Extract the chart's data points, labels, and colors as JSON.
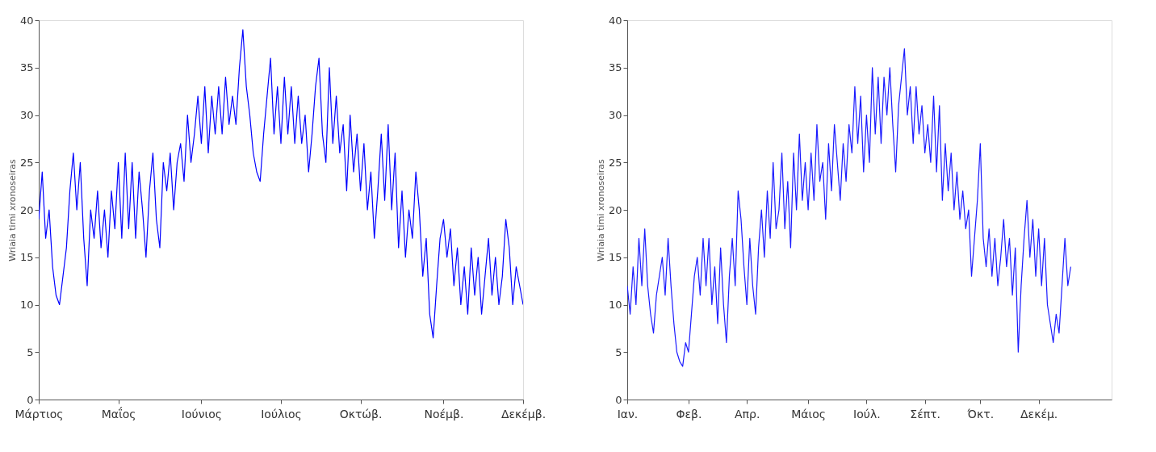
{
  "chart_data": [
    {
      "type": "line",
      "ylabel": "Wriaia timi xronoseiras",
      "grid": false,
      "categories": [
        "Μάρτιος",
        null,
        null,
        null,
        null,
        null,
        null,
        null,
        null,
        null,
        null,
        null,
        null,
        null,
        null,
        null,
        null,
        null,
        null,
        null,
        null,
        null,
        null,
        "Μαΐος",
        null,
        null,
        null,
        null,
        null,
        null,
        null,
        null,
        null,
        null,
        null,
        null,
        null,
        null,
        null,
        null,
        null,
        null,
        null,
        null,
        null,
        null,
        null,
        "Ιούνιος",
        null,
        null,
        null,
        null,
        null,
        null,
        null,
        null,
        null,
        null,
        null,
        null,
        null,
        null,
        null,
        null,
        null,
        null,
        null,
        null,
        null,
        null,
        "Ιούλιος",
        null,
        null,
        null,
        null,
        null,
        null,
        null,
        null,
        null,
        null,
        null,
        null,
        null,
        null,
        null,
        null,
        null,
        null,
        null,
        null,
        null,
        null,
        "Οκτώβ.",
        null,
        null,
        null,
        null,
        null,
        null,
        null,
        null,
        null,
        null,
        null,
        null,
        null,
        null,
        null,
        null,
        null,
        null,
        null,
        null,
        null,
        null,
        null,
        "Νοέμβ.",
        null,
        null,
        null,
        null,
        null,
        null,
        null,
        null,
        null,
        null,
        null,
        null,
        null,
        null,
        null,
        null,
        null,
        null,
        null,
        null,
        null,
        null,
        "Δεκέμβ."
      ],
      "ylim": [
        0,
        40
      ],
      "yticks": [
        0,
        5,
        10,
        15,
        20,
        25,
        30,
        35,
        40
      ],
      "series": [
        {
          "color": "#0000ff",
          "values": [
            19,
            24,
            17,
            20,
            14,
            11,
            10,
            13,
            16,
            22,
            26,
            20,
            25,
            17,
            12,
            20,
            17,
            22,
            16,
            20,
            15,
            22,
            18,
            25,
            17,
            26,
            18,
            25,
            17,
            24,
            20,
            15,
            22,
            26,
            19,
            16,
            25,
            22,
            26,
            20,
            25,
            27,
            23,
            30,
            25,
            28,
            32,
            27,
            33,
            26,
            32,
            28,
            33,
            28,
            34,
            29,
            32,
            29,
            35,
            39,
            33,
            30,
            26,
            24,
            23,
            28,
            32,
            36,
            28,
            33,
            27,
            34,
            28,
            33,
            27,
            32,
            27,
            30,
            24,
            28,
            33,
            36,
            28,
            25,
            35,
            27,
            32,
            26,
            29,
            22,
            30,
            24,
            28,
            22,
            27,
            20,
            24,
            17,
            22,
            28,
            21,
            29,
            20,
            26,
            16,
            22,
            15,
            20,
            17,
            24,
            20,
            13,
            17,
            9,
            6.5,
            12,
            17,
            19,
            15,
            18,
            12,
            16,
            10,
            14,
            9,
            16,
            11,
            15,
            9,
            13,
            17,
            11,
            15,
            10,
            13,
            19,
            16,
            10,
            14,
            12,
            10
          ]
        }
      ]
    },
    {
      "type": "line",
      "ylabel": "Wriaia timi xronoseiras",
      "grid": false,
      "categories": [
        "Ιαν.",
        null,
        null,
        null,
        null,
        null,
        null,
        null,
        null,
        null,
        null,
        null,
        null,
        null,
        null,
        null,
        null,
        null,
        null,
        null,
        null,
        "Φεβ.",
        null,
        null,
        null,
        null,
        null,
        null,
        null,
        null,
        null,
        null,
        null,
        null,
        null,
        null,
        null,
        null,
        null,
        null,
        null,
        "Απρ.",
        null,
        null,
        null,
        null,
        null,
        null,
        null,
        null,
        null,
        null,
        null,
        null,
        null,
        null,
        null,
        null,
        null,
        null,
        null,
        null,
        "Μάιος",
        null,
        null,
        null,
        null,
        null,
        null,
        null,
        null,
        null,
        null,
        null,
        null,
        null,
        null,
        null,
        null,
        null,
        null,
        null,
        "Ιούλ.",
        null,
        null,
        null,
        null,
        null,
        null,
        null,
        null,
        null,
        null,
        null,
        null,
        null,
        null,
        null,
        null,
        null,
        null,
        null,
        "Σέπτ.",
        null,
        null,
        null,
        null,
        null,
        null,
        null,
        null,
        null,
        null,
        null,
        null,
        null,
        null,
        null,
        null,
        null,
        null,
        "Όκτ.",
        null,
        null,
        null,
        null,
        null,
        null,
        null,
        null,
        null,
        null,
        null,
        null,
        null,
        null,
        null,
        null,
        null,
        null,
        null,
        "Δεκέμ.",
        null,
        null,
        null,
        null,
        null,
        null,
        null,
        null,
        null,
        null,
        null,
        null,
        null,
        null,
        null,
        null,
        null,
        null,
        null,
        null,
        null,
        null,
        null,
        null,
        null
      ],
      "ylim": [
        0,
        40
      ],
      "yticks": [
        0,
        5,
        10,
        15,
        20,
        25,
        30,
        35,
        40
      ],
      "series": [
        {
          "color": "#1a1aff",
          "values": [
            12,
            9,
            14,
            10,
            17,
            12,
            18,
            12,
            9,
            7,
            11,
            13,
            15,
            11,
            17,
            12,
            8,
            5,
            4,
            3.5,
            6,
            5,
            9,
            13,
            15,
            11,
            17,
            12,
            17,
            10,
            14,
            8,
            16,
            10,
            6,
            13,
            17,
            12,
            22,
            19,
            14,
            10,
            17,
            12,
            9,
            16,
            20,
            15,
            22,
            17,
            25,
            18,
            20,
            26,
            18,
            23,
            16,
            26,
            20,
            28,
            21,
            25,
            20,
            26,
            21,
            29,
            23,
            25,
            19,
            27,
            22,
            29,
            25,
            21,
            27,
            23,
            29,
            26,
            33,
            27,
            32,
            24,
            30,
            25,
            35,
            28,
            34,
            27,
            34,
            30,
            35,
            29,
            24,
            31,
            34,
            37,
            30,
            33,
            27,
            33,
            28,
            31,
            26,
            29,
            25,
            32,
            24,
            31,
            21,
            27,
            22,
            26,
            20,
            24,
            19,
            22,
            18,
            20,
            13,
            17,
            21,
            27,
            17,
            14,
            18,
            13,
            17,
            12,
            15,
            19,
            14,
            17,
            11,
            16,
            5,
            12,
            17,
            21,
            15,
            19,
            13,
            18,
            12,
            17,
            10,
            8,
            6,
            9,
            7,
            12,
            17,
            12,
            14,
            null,
            null,
            null,
            null,
            null,
            null,
            null,
            null,
            null,
            null,
            null,
            null,
            null,
            null
          ]
        }
      ]
    }
  ]
}
